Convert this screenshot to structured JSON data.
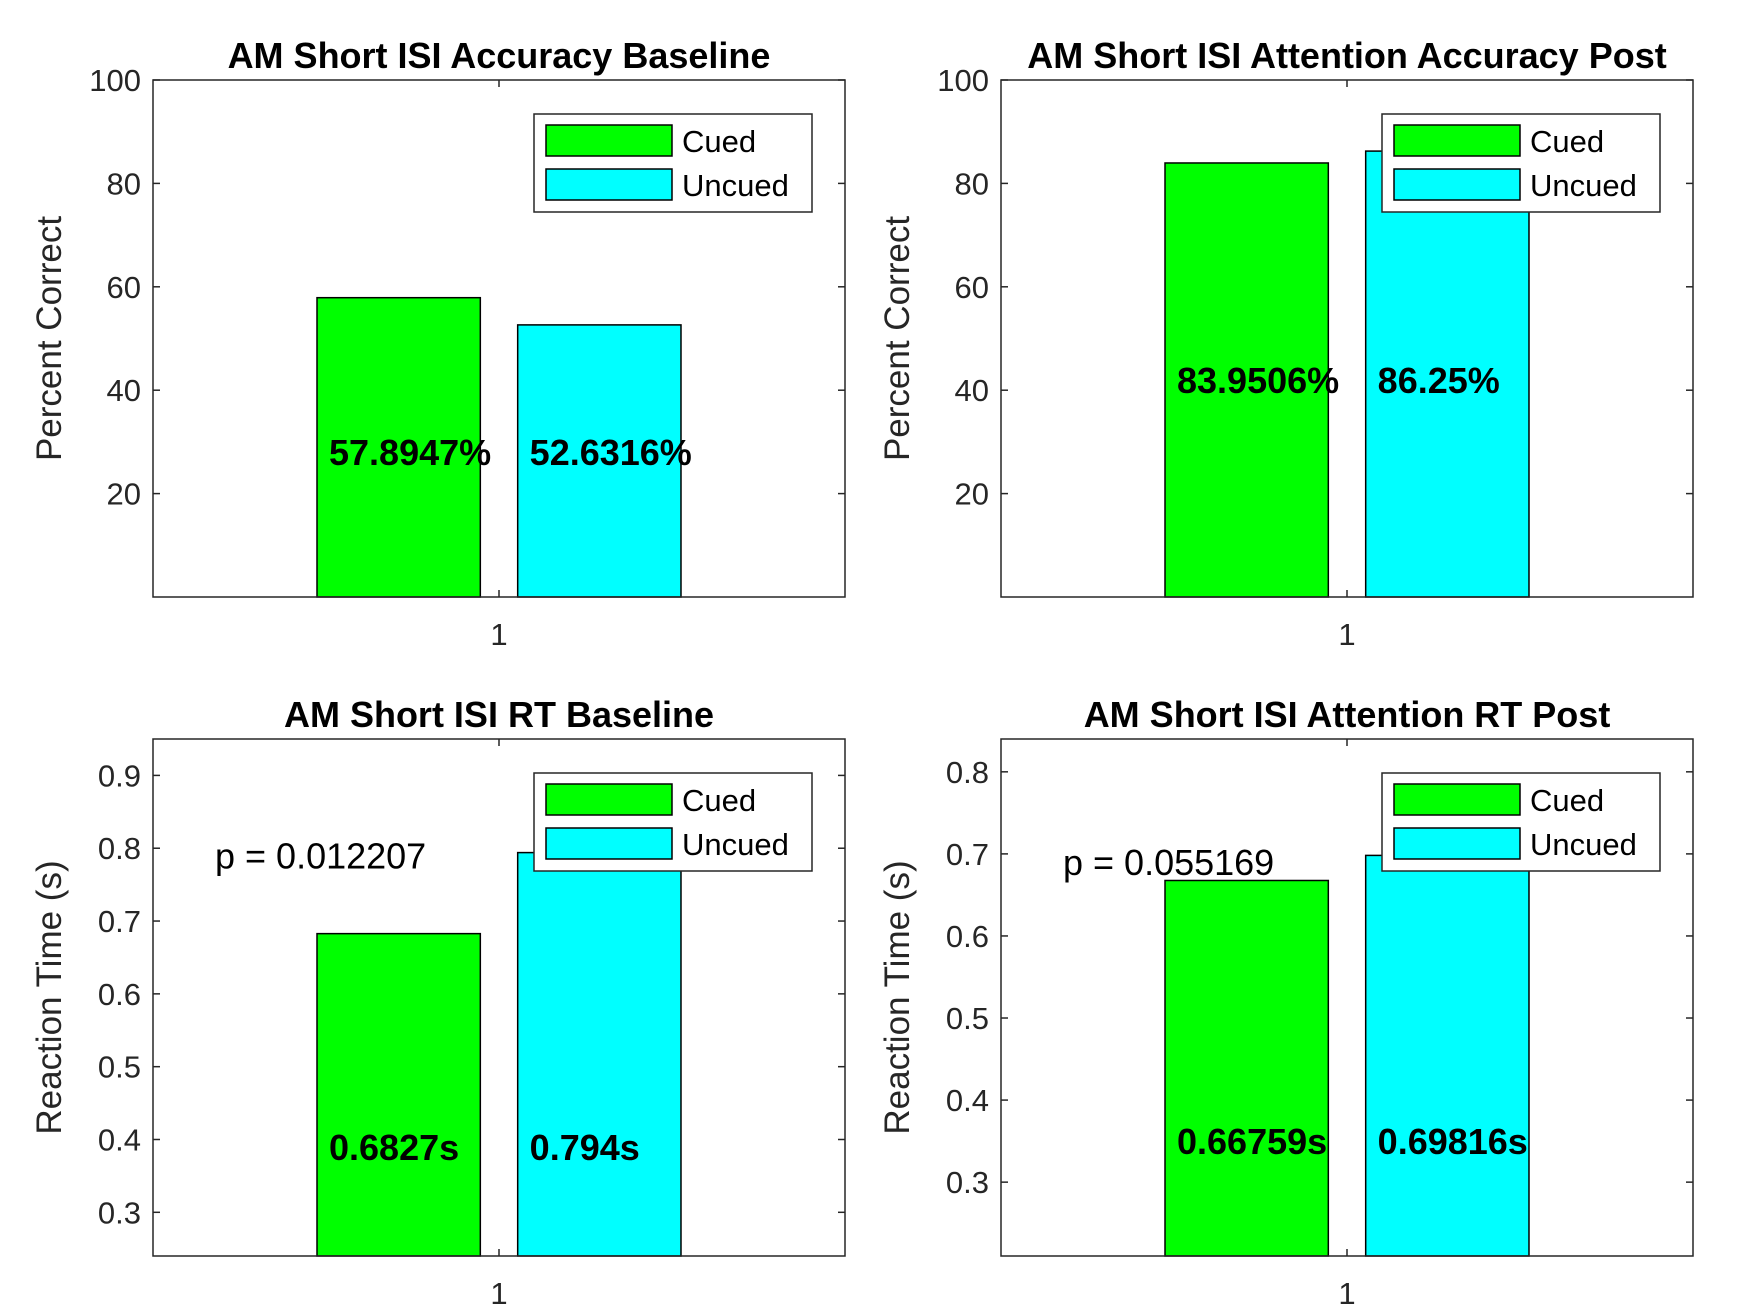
{
  "chart_data": [
    {
      "type": "bar",
      "title": "AM Short ISI Accuracy Baseline",
      "ylabel": "Percent Correct",
      "xlabel": "",
      "categories": [
        "1"
      ],
      "ylim": [
        0,
        100
      ],
      "yticks": [
        20,
        40,
        60,
        80,
        100
      ],
      "yticklabels": [
        "20",
        "40",
        "60",
        "80",
        "100"
      ],
      "series": [
        {
          "name": "Cued",
          "color": "#00ff00",
          "values": [
            57.8947
          ],
          "label": "57.8947%"
        },
        {
          "name": "Uncued",
          "color": "#00ffff",
          "values": [
            52.6316
          ],
          "label": "52.6316%"
        }
      ],
      "label_y": 28,
      "legend": "top-right",
      "annotation": ""
    },
    {
      "type": "bar",
      "title": "AM Short ISI Attention Accuracy Post",
      "ylabel": "Percent Correct",
      "xlabel": "",
      "categories": [
        "1"
      ],
      "ylim": [
        0,
        100
      ],
      "yticks": [
        20,
        40,
        60,
        80,
        100
      ],
      "yticklabels": [
        "20",
        "40",
        "60",
        "80",
        "100"
      ],
      "series": [
        {
          "name": "Cued",
          "color": "#00ff00",
          "values": [
            83.9506
          ],
          "label": "83.9506%"
        },
        {
          "name": "Uncued",
          "color": "#00ffff",
          "values": [
            86.25
          ],
          "label": "86.25%"
        }
      ],
      "label_y": 42,
      "legend": "top-right",
      "annotation": ""
    },
    {
      "type": "bar",
      "title": "AM Short ISI RT Baseline",
      "ylabel": "Reaction Time (s)",
      "xlabel": "",
      "categories": [
        "1"
      ],
      "ylim": [
        0.24,
        0.95
      ],
      "yticks": [
        0.3,
        0.4,
        0.5,
        0.6,
        0.7,
        0.8,
        0.9
      ],
      "yticklabels": [
        "0.3",
        "0.4",
        "0.5",
        "0.6",
        "0.7",
        "0.8",
        "0.9"
      ],
      "series": [
        {
          "name": "Cued",
          "color": "#00ff00",
          "values": [
            0.6827
          ],
          "label": "0.6827s"
        },
        {
          "name": "Uncued",
          "color": "#00ffff",
          "values": [
            0.794
          ],
          "label": "0.794s"
        }
      ],
      "label_y": 0.39,
      "legend": "top-right",
      "annotation": "p = 0.012207",
      "annotation_y": 0.79
    },
    {
      "type": "bar",
      "title": "AM Short ISI Attention RT Post",
      "ylabel": "Reaction Time (s)",
      "xlabel": "",
      "categories": [
        "1"
      ],
      "ylim": [
        0.21,
        0.84
      ],
      "yticks": [
        0.3,
        0.4,
        0.5,
        0.6,
        0.7,
        0.8
      ],
      "yticklabels": [
        "0.3",
        "0.4",
        "0.5",
        "0.6",
        "0.7",
        "0.8"
      ],
      "series": [
        {
          "name": "Cued",
          "color": "#00ff00",
          "values": [
            0.66759
          ],
          "label": "0.66759s"
        },
        {
          "name": "Uncued",
          "color": "#00ffff",
          "values": [
            0.69816
          ],
          "label": "0.69816s"
        }
      ],
      "label_y": 0.35,
      "legend": "top-right",
      "annotation": "p = 0.055169",
      "annotation_y": 0.69
    }
  ]
}
